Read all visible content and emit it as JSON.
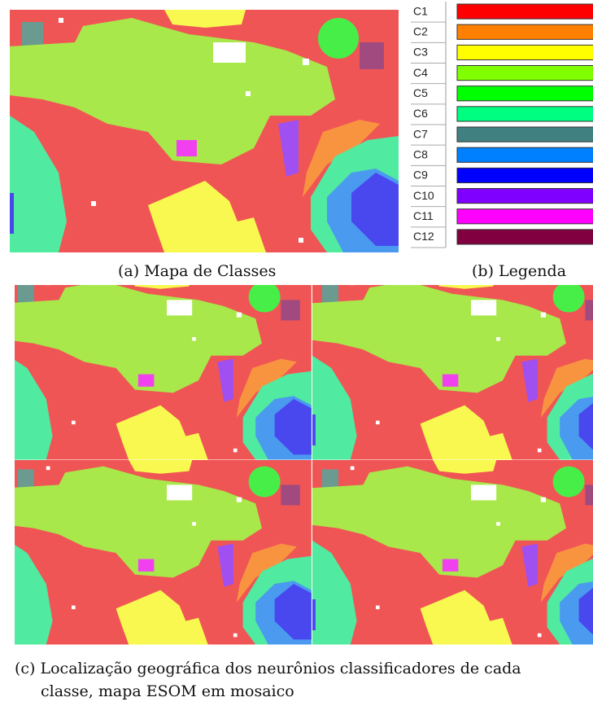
{
  "legend": {
    "items": [
      {
        "label": "C1",
        "color": "#ff0000"
      },
      {
        "label": "C2",
        "color": "#ff8000"
      },
      {
        "label": "C3",
        "color": "#ffff00"
      },
      {
        "label": "C4",
        "color": "#80ff00"
      },
      {
        "label": "C5",
        "color": "#00ff00"
      },
      {
        "label": "C6",
        "color": "#00ff80"
      },
      {
        "label": "C7",
        "color": "#408080"
      },
      {
        "label": "C8",
        "color": "#0080ff"
      },
      {
        "label": "C9",
        "color": "#0000ff"
      },
      {
        "label": "C10",
        "color": "#8000ff"
      },
      {
        "label": "C11",
        "color": "#ff00ff"
      },
      {
        "label": "C12",
        "color": "#800040"
      }
    ]
  },
  "captions": {
    "a": "(a) Mapa de Classes",
    "b": "(b) Legenda",
    "c_line1": "(c) Localização geográfica dos neurônios classificadores de cada",
    "c_line2": "classe, mapa ESOM em mosaico"
  }
}
